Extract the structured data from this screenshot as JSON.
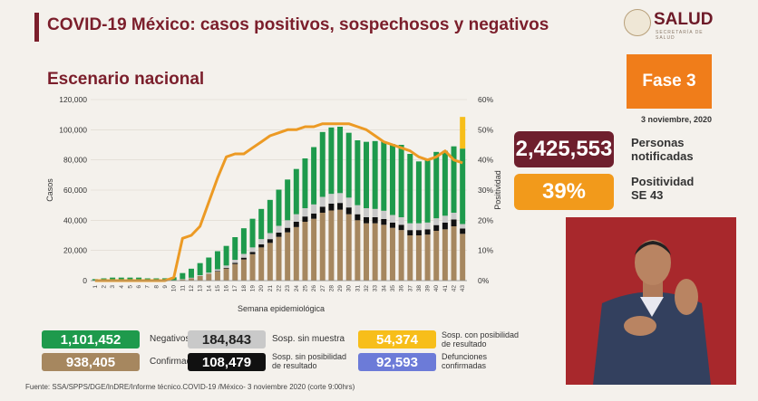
{
  "header": {
    "title": "COVID-19 México: casos positivos, sospechosos y negativos",
    "subtitle": "Escenario nacional",
    "logo_name": "SALUD",
    "logo_sub": "SECRETARÍA DE SALUD"
  },
  "fase": {
    "label": "Fase 3",
    "date": "3 noviembre, 2020"
  },
  "kpis": {
    "notificadas_value": "2,425,553",
    "notificadas_label_1": "Personas",
    "notificadas_label_2": "notificadas",
    "positividad_value": "39%",
    "positividad_label_1": "Positividad",
    "positividad_label_2": "SE 43"
  },
  "legend": {
    "negativos": {
      "value": "1,101,452",
      "label": "Negativos"
    },
    "confirmados": {
      "value": "938,405",
      "label": "Confirmados"
    },
    "sosp_sin_muestra": {
      "value": "184,843",
      "label": "Sosp. sin muestra"
    },
    "sosp_sin_posibilidad": {
      "value": "108,479",
      "label_1": "Sosp. sin posibilidad",
      "label_2": "de resultado"
    },
    "sosp_con_posibilidad": {
      "value": "54,374",
      "label_1": "Sosp. con posibilidad",
      "label_2": "de resultado"
    },
    "defunciones": {
      "value": "92,593",
      "label_1": "Defunciones",
      "label_2": "confirmadas"
    }
  },
  "source": "Fuente: SSA/SPPS/DGE/InDRE/Informe técnico.COVID-19 /México- 3 noviembre 2020 (corte 9:00hrs)",
  "colors": {
    "confirmados": "#a6875f",
    "sosp_sin_posibilidad": "#111111",
    "sosp_sin_muestra": "#c9c9c9",
    "negativos": "#1e9a4c",
    "sosp_con_posibilidad": "#f7be1a",
    "positividad": "#ec9a24",
    "defunciones": "#6c7bd8"
  },
  "chart_data": {
    "type": "bar",
    "stacked": true,
    "xlabel": "Semana epidemiológica",
    "ylabel": "Casos",
    "y2label": "Positividad",
    "ylim": [
      0,
      120000
    ],
    "y2lim": [
      0,
      60
    ],
    "yticks": [
      "0",
      "20,000",
      "40,000",
      "60,000",
      "80,000",
      "100,000",
      "120,000"
    ],
    "y2ticks": [
      "0%",
      "10%",
      "20%",
      "30%",
      "40%",
      "50%",
      "60%"
    ],
    "categories": [
      "1",
      "2",
      "3",
      "4",
      "5",
      "6",
      "7",
      "8",
      "9",
      "10",
      "11",
      "12",
      "13",
      "14",
      "15",
      "16",
      "17",
      "18",
      "19",
      "20",
      "21",
      "22",
      "23",
      "24",
      "25",
      "26",
      "27",
      "28",
      "29",
      "30",
      "31",
      "32",
      "33",
      "34",
      "35",
      "36",
      "37",
      "38",
      "39",
      "40",
      "41",
      "42",
      "43"
    ],
    "series": [
      {
        "name": "Confirmados",
        "values": [
          0,
          0,
          0,
          0,
          0,
          0,
          0,
          0,
          50,
          200,
          800,
          1500,
          3000,
          4500,
          6000,
          8000,
          11000,
          14000,
          17500,
          22000,
          25000,
          29000,
          32000,
          35500,
          39000,
          41000,
          45000,
          46500,
          47000,
          44000,
          40000,
          38000,
          38000,
          37000,
          35000,
          33500,
          30000,
          30000,
          30500,
          33000,
          34000,
          36000,
          31000
        ]
      },
      {
        "name": "Sosp. sin posibilidad de resultado",
        "values": [
          0,
          0,
          0,
          0,
          0,
          0,
          0,
          0,
          0,
          0,
          0,
          0,
          0,
          0,
          300,
          500,
          800,
          1200,
          1500,
          2000,
          2500,
          2800,
          3000,
          3500,
          3500,
          3500,
          4000,
          4500,
          4500,
          4500,
          4000,
          4000,
          4000,
          3800,
          3500,
          3500,
          3500,
          3500,
          3500,
          3800,
          4500,
          4500,
          3500
        ]
      },
      {
        "name": "Sosp. sin muestra",
        "values": [
          0,
          0,
          0,
          0,
          0,
          0,
          0,
          0,
          0,
          0,
          200,
          400,
          600,
          800,
          1200,
          1500,
          2000,
          2500,
          3000,
          3500,
          4000,
          4500,
          5000,
          5000,
          5500,
          6000,
          6500,
          6500,
          6500,
          6500,
          6000,
          6000,
          5500,
          5500,
          5000,
          5000,
          4500,
          4500,
          4500,
          4500,
          4500,
          4500,
          3000
        ]
      },
      {
        "name": "Negativos",
        "values": [
          1000,
          1500,
          2000,
          2000,
          2000,
          2000,
          1500,
          1500,
          1500,
          2000,
          4000,
          6000,
          8000,
          10000,
          12000,
          13000,
          15000,
          17000,
          19000,
          20000,
          22000,
          24000,
          27000,
          30000,
          33000,
          38000,
          43000,
          44000,
          44000,
          43000,
          43000,
          44000,
          45000,
          46000,
          47000,
          48000,
          46000,
          41000,
          41500,
          44000,
          43000,
          44000,
          50000
        ]
      },
      {
        "name": "Sosp. con posibilidad de resultado",
        "values": [
          0,
          0,
          0,
          0,
          0,
          0,
          0,
          0,
          0,
          0,
          0,
          0,
          0,
          0,
          0,
          0,
          0,
          0,
          0,
          0,
          0,
          0,
          0,
          0,
          0,
          0,
          0,
          0,
          0,
          0,
          0,
          0,
          0,
          0,
          0,
          0,
          0,
          0,
          0,
          0,
          0,
          0,
          21000
        ]
      }
    ],
    "line": {
      "name": "Positividad",
      "axis": "right",
      "values": [
        0,
        0,
        0,
        0,
        0,
        0,
        0,
        0,
        0,
        1,
        14,
        15,
        18,
        26,
        34,
        41,
        42,
        42,
        44,
        46,
        48,
        49,
        50,
        50,
        51,
        51,
        52,
        52,
        52,
        52,
        51,
        50,
        48,
        46,
        45,
        44,
        43,
        41,
        40,
        41,
        43,
        40,
        39
      ]
    }
  }
}
